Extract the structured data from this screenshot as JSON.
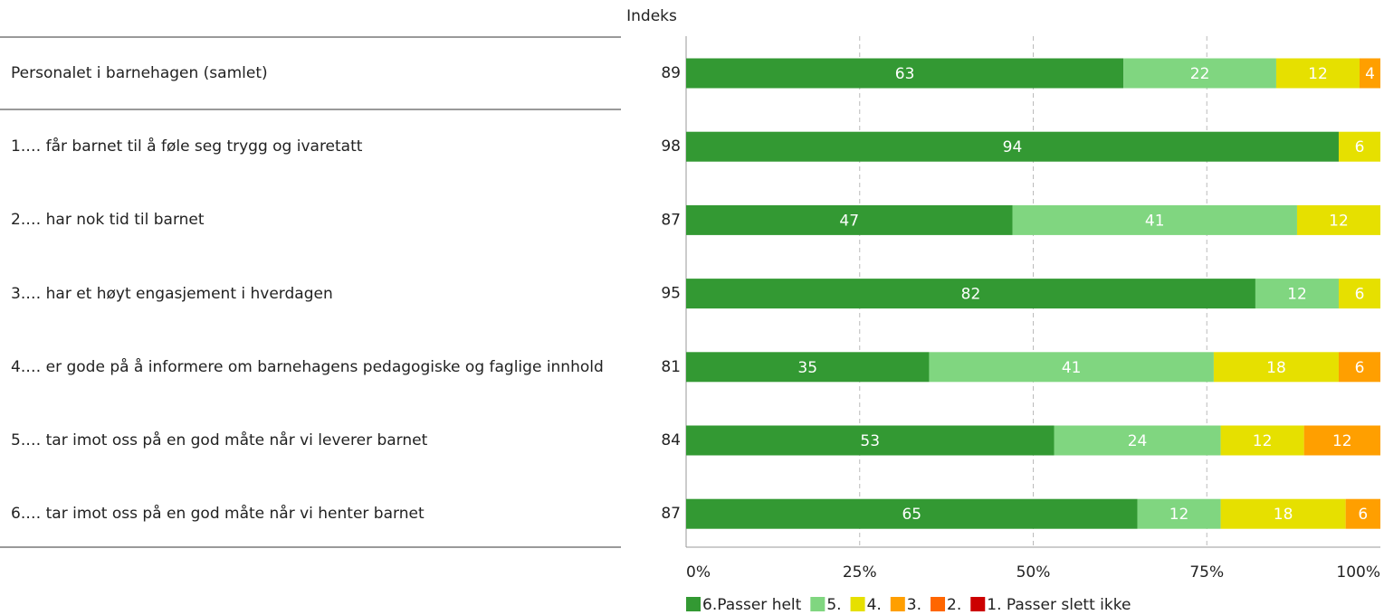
{
  "chart_data": {
    "type": "stacked-bar-horizontal",
    "index_header": "Indeks",
    "categories": [
      "Personalet i barnehagen (samlet)",
      "1.… får barnet til å føle seg trygg og ivaretatt",
      "2.… har nok tid til barnet",
      "3.… har et høyt engasjement i hverdagen",
      "4.… er gode på å informere om barnehagens pedagogiske og faglige innhold",
      "5.… tar imot oss på en god måte når vi leverer barnet",
      "6.… tar imot oss på en god måte når vi henter barnet"
    ],
    "index": [
      89,
      98,
      87,
      95,
      81,
      84,
      87
    ],
    "series": [
      {
        "name": "6.Passer helt",
        "color": "#339933",
        "values": [
          63,
          94,
          47,
          82,
          35,
          53,
          65
        ]
      },
      {
        "name": "5.",
        "color": "#80d680",
        "values": [
          22,
          null,
          41,
          12,
          41,
          24,
          12
        ]
      },
      {
        "name": "4.",
        "color": "#e6e000",
        "values": [
          12,
          6,
          12,
          6,
          18,
          12,
          18
        ]
      },
      {
        "name": "3.",
        "color": "#ff9f00",
        "values": [
          4,
          null,
          null,
          null,
          6,
          12,
          6
        ]
      },
      {
        "name": "2.",
        "color": "#ff6600",
        "values": [
          null,
          null,
          null,
          null,
          null,
          null,
          null
        ]
      },
      {
        "name": "1. Passer slett ikke",
        "color": "#cc0000",
        "values": [
          null,
          null,
          null,
          null,
          null,
          null,
          null
        ]
      }
    ],
    "xlim": [
      0,
      100
    ],
    "xticks": [
      {
        "value": 0,
        "label": "0%"
      },
      {
        "value": 25,
        "label": "25%"
      },
      {
        "value": 50,
        "label": "50%"
      },
      {
        "value": 75,
        "label": "75%"
      },
      {
        "value": 100,
        "label": "100%"
      }
    ],
    "grid": true,
    "legend": "bottom"
  }
}
